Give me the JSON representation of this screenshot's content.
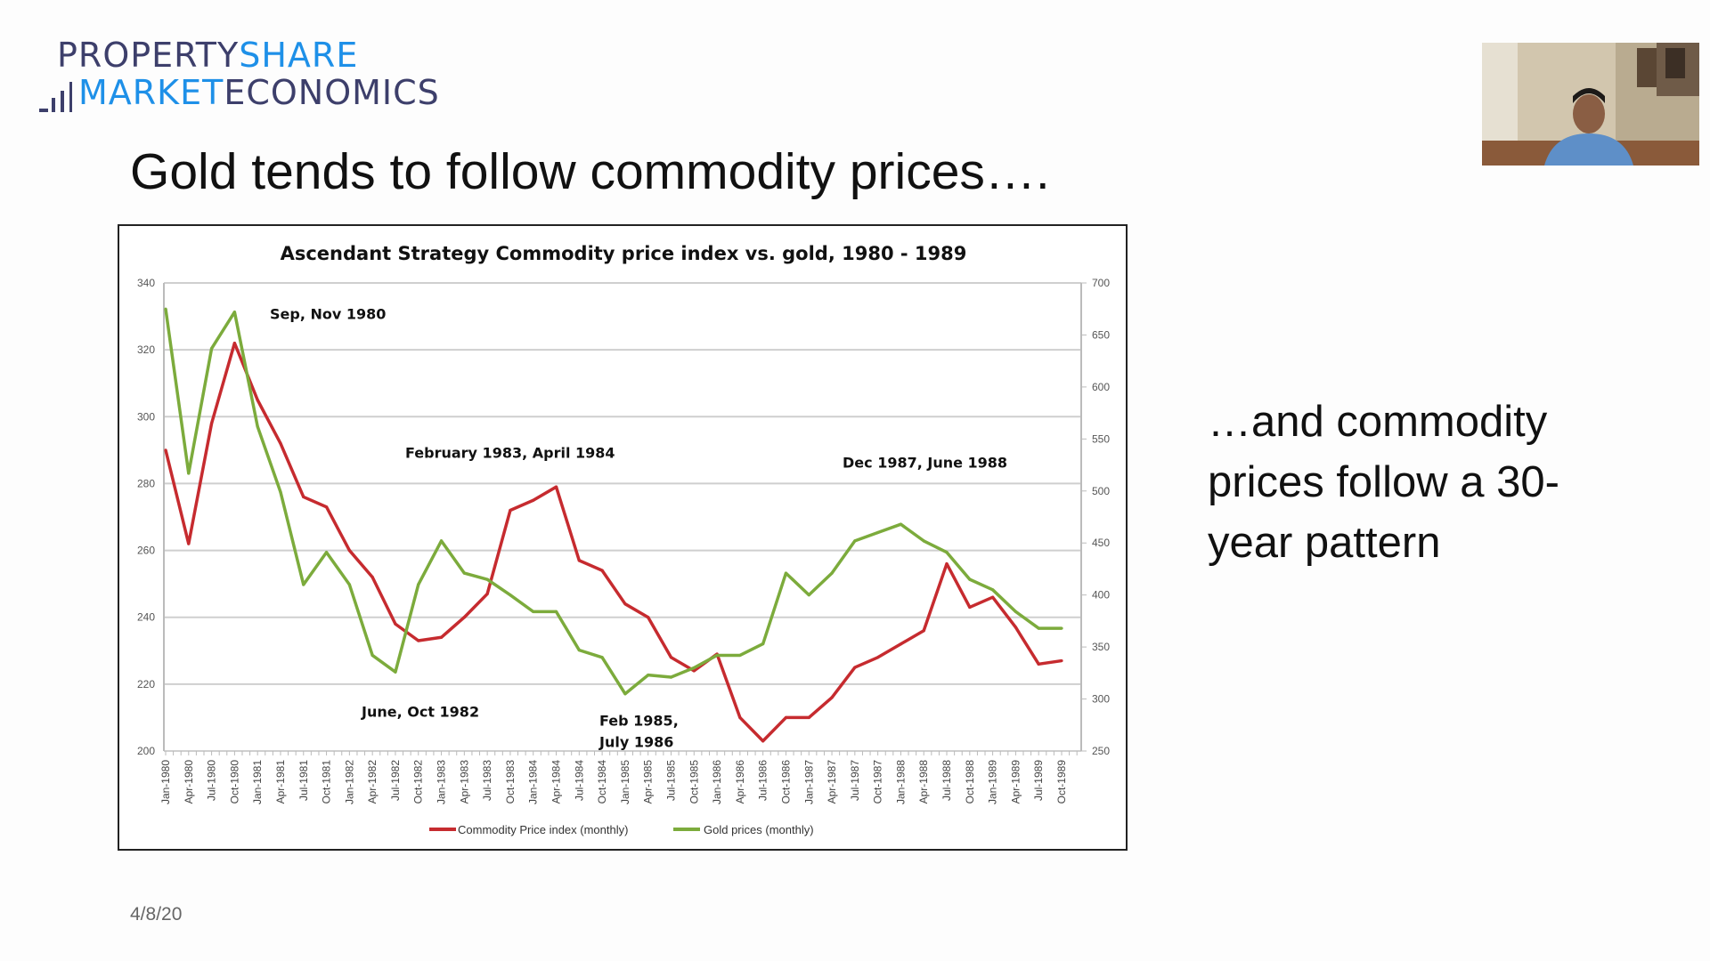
{
  "logo": {
    "line1_a": "PROPERTY",
    "line1_b": "SHARE",
    "line2_a": "MARKET",
    "line2_b": "ECONOMICS"
  },
  "slide": {
    "title": "Gold tends to follow commodity prices….",
    "side_text": "…and commodity prices follow a 30-year pattern",
    "date": "4/8/20"
  },
  "colors": {
    "commodity": "#c62b2f",
    "gold": "#7cab3c",
    "logo_dark": "#3d3f6b",
    "logo_blue": "#1e90e8"
  },
  "chart_data": {
    "type": "line",
    "title": "Ascendant Strategy Commodity price index vs. gold, 1980 - 1989",
    "grid": true,
    "legend": "bottom",
    "categories": [
      "Jan-1980",
      "Apr-1980",
      "Jul-1980",
      "Oct-1980",
      "Jan-1981",
      "Apr-1981",
      "Jul-1981",
      "Oct-1981",
      "Jan-1982",
      "Apr-1982",
      "Jul-1982",
      "Oct-1982",
      "Jan-1983",
      "Apr-1983",
      "Jul-1983",
      "Oct-1983",
      "Jan-1984",
      "Apr-1984",
      "Jul-1984",
      "Oct-1984",
      "Jan-1985",
      "Apr-1985",
      "Jul-1985",
      "Oct-1985",
      "Jan-1986",
      "Apr-1986",
      "Jul-1986",
      "Oct-1986",
      "Jan-1987",
      "Apr-1987",
      "Jul-1987",
      "Oct-1987",
      "Jan-1988",
      "Apr-1988",
      "Jul-1988",
      "Oct-1988",
      "Jan-1989",
      "Apr-1989",
      "Jul-1989",
      "Oct-1989"
    ],
    "y_left": {
      "min": 200,
      "max": 340,
      "ticks": [
        "200",
        "220",
        "240",
        "260",
        "280",
        "300",
        "320",
        "340"
      ]
    },
    "y_right": {
      "min": 250,
      "max": 700,
      "ticks": [
        "250",
        "300",
        "350",
        "400",
        "450",
        "500",
        "550",
        "600",
        "650",
        "700"
      ]
    },
    "series": [
      {
        "name": "Commodity Price index (monthly)",
        "axis": "left",
        "values": [
          290,
          262,
          298,
          322,
          305,
          292,
          276,
          273,
          260,
          252,
          238,
          233,
          234,
          240,
          247,
          272,
          275,
          279,
          257,
          254,
          244,
          240,
          228,
          224,
          229,
          210,
          203,
          210,
          210,
          216,
          225,
          228,
          232,
          236,
          256,
          243,
          246,
          237,
          226,
          227
        ]
      },
      {
        "name": "Gold prices (monthly)",
        "axis": "right",
        "values": [
          675,
          517,
          637,
          672,
          562,
          499,
          410,
          441,
          410,
          342,
          326,
          410,
          452,
          421,
          415,
          400,
          384,
          384,
          347,
          340,
          305,
          323,
          321,
          330,
          342,
          342,
          353,
          421,
          400,
          421,
          452,
          460,
          468,
          452,
          441,
          415,
          405,
          384,
          368,
          368
        ]
      }
    ],
    "annotations": [
      "Sep, Nov 1980",
      "February 1983, April 1984",
      "June, Oct 1982",
      "Feb 1985,",
      "July 1986",
      "Dec 1987, June 1988"
    ]
  }
}
